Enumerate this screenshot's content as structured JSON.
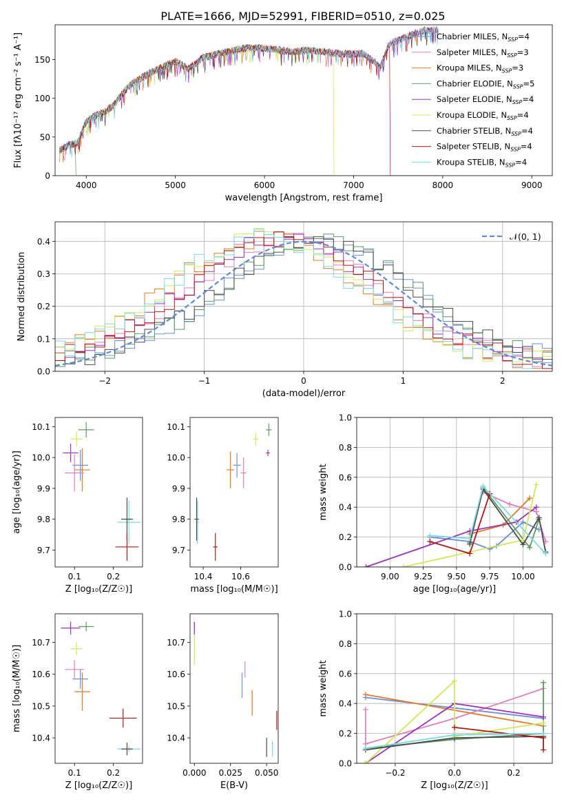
{
  "figure_title": "PLATE=1666, MJD=52991, FIBERID=0510, z=0.025",
  "model_colors": [
    "#6b8fd6",
    "#e07fbf",
    "#e07a2a",
    "#5a9a60",
    "#9a32b8",
    "#cfe85a",
    "#4a4a4a",
    "#b01515",
    "#7fd8e0"
  ],
  "legend_models": [
    {
      "name": "Chabrier MILES",
      "n": "4"
    },
    {
      "name": "Salpeter MILES",
      "n": "3"
    },
    {
      "name": "Kroupa MILES",
      "n": "3"
    },
    {
      "name": "Chabrier ELODIE",
      "n": "5"
    },
    {
      "name": "Salpeter ELODIE",
      "n": "4"
    },
    {
      "name": "Kroupa ELODIE",
      "n": "4"
    },
    {
      "name": "Chabrier STELIB",
      "n": "4"
    },
    {
      "name": "Salpeter STELIB",
      "n": "4"
    },
    {
      "name": "Kroupa STELIB",
      "n": "4"
    }
  ],
  "chart_data": [
    {
      "panel": "spectrum",
      "type": "line",
      "xlabel": "wavelength [Angstrom, rest frame]",
      "ylabel_main": "Flux [f",
      "ylabel_units": "10⁻¹⁷ erg cm⁻² s⁻¹ A⁻¹]",
      "xlim": [
        3650,
        9230
      ],
      "ylim": [
        0,
        195
      ],
      "xticks": [
        4000,
        5000,
        6000,
        7000,
        8000,
        9000
      ],
      "yticks": [
        0,
        50,
        100,
        150
      ],
      "continuum": {
        "x": [
          3700,
          3800,
          3900,
          4000,
          4100,
          4200,
          4300,
          4400,
          4500,
          4700,
          5000,
          5150,
          5300,
          5500,
          5800,
          6000,
          6300,
          6500,
          6800,
          7000,
          7100,
          7200,
          7300,
          7400,
          7600,
          7800,
          7950
        ],
        "y": [
          32,
          40,
          42,
          70,
          78,
          82,
          90,
          105,
          118,
          132,
          148,
          138,
          152,
          158,
          165,
          165,
          160,
          162,
          158,
          157,
          158,
          150,
          140,
          170,
          180,
          188,
          188
        ]
      },
      "cutoffs": [
        {
          "model": "Kroupa ELODIE",
          "x": 6780
        },
        {
          "model": "Salpeter STELIB",
          "x": 7410
        },
        {
          "model": "Chabrier ELODIE",
          "x": 3900
        }
      ]
    },
    {
      "panel": "residuals",
      "type": "histogram",
      "xlabel": "(data-model)/error",
      "ylabel": "Normed distribution",
      "xlim": [
        -2.5,
        2.5
      ],
      "ylim": [
        0,
        0.46
      ],
      "xticks": [
        -2,
        -1,
        0,
        1,
        2
      ],
      "yticks": [
        0.0,
        0.1,
        0.2,
        0.3,
        0.4
      ],
      "grid": true,
      "reference_curve": {
        "label": "𝒩(0, 1)",
        "mean": 0,
        "sigma": 1
      },
      "legend_position": "top-right"
    },
    {
      "panel": "age-vs-Z",
      "type": "scatter",
      "xlabel": "Z [log₁₀(Z/Z☉)]",
      "ylabel": "age  [log₁₀(age/yr)]",
      "xlim": [
        0.05,
        0.275
      ],
      "ylim": [
        9.645,
        10.13
      ],
      "xticks": [
        0.1,
        0.2
      ],
      "yticks": [
        9.7,
        9.8,
        9.9,
        10.0,
        10.1
      ],
      "points": [
        {
          "x": 0.13,
          "y": 10.09,
          "xerr": 0.02,
          "yerr": 0.025,
          "c": 3
        },
        {
          "x": 0.105,
          "y": 10.06,
          "xerr": 0.015,
          "yerr": 0.025,
          "c": 5
        },
        {
          "x": 0.09,
          "y": 10.015,
          "xerr": 0.02,
          "yerr": 0.03,
          "c": 4
        },
        {
          "x": 0.115,
          "y": 9.975,
          "xerr": 0.02,
          "yerr": 0.05,
          "c": 0
        },
        {
          "x": 0.12,
          "y": 9.96,
          "xerr": 0.02,
          "yerr": 0.07,
          "c": 2
        },
        {
          "x": 0.1,
          "y": 9.95,
          "xerr": 0.025,
          "yerr": 0.06,
          "c": 1
        },
        {
          "x": 0.24,
          "y": 9.79,
          "xerr": 0.03,
          "yerr": 0.07,
          "c": 8
        },
        {
          "x": 0.235,
          "y": 9.8,
          "xerr": 0.015,
          "yerr": 0.07,
          "c": 6
        },
        {
          "x": 0.235,
          "y": 9.71,
          "xerr": 0.03,
          "yerr": 0.045,
          "c": 7
        }
      ]
    },
    {
      "panel": "age-vs-mass",
      "type": "scatter",
      "xlabel": "mass [log₁₀(M/M☉)]",
      "ylim": [
        9.645,
        10.13
      ],
      "xlim": [
        10.33,
        10.8
      ],
      "xticks": [
        10.4,
        10.6
      ],
      "yticks": [
        9.7,
        9.8,
        9.9,
        10.0,
        10.1
      ],
      "points": [
        {
          "x": 10.75,
          "y": 10.09,
          "xerr": 0.015,
          "yerr": 0.02,
          "c": 3
        },
        {
          "x": 10.68,
          "y": 10.06,
          "xerr": 0.015,
          "yerr": 0.02,
          "c": 5
        },
        {
          "x": 10.745,
          "y": 10.015,
          "xerr": 0.01,
          "yerr": 0.01,
          "c": 4
        },
        {
          "x": 10.58,
          "y": 9.975,
          "xerr": 0.02,
          "yerr": 0.04,
          "c": 0
        },
        {
          "x": 10.545,
          "y": 9.96,
          "xerr": 0.02,
          "yerr": 0.06,
          "c": 2
        },
        {
          "x": 10.615,
          "y": 9.95,
          "xerr": 0.015,
          "yerr": 0.05,
          "c": 1
        },
        {
          "x": 10.37,
          "y": 9.79,
          "xerr": 0.008,
          "yerr": 0.07,
          "c": 8
        },
        {
          "x": 10.365,
          "y": 9.8,
          "xerr": 0.012,
          "yerr": 0.07,
          "c": 6
        },
        {
          "x": 10.465,
          "y": 9.71,
          "xerr": 0.012,
          "yerr": 0.045,
          "c": 7
        }
      ]
    },
    {
      "panel": "weight-vs-age",
      "type": "line",
      "xlabel": "age  [log₁₀(age/yr)]",
      "ylabel": "mass weight",
      "xlim": [
        8.75,
        10.22
      ],
      "ylim": [
        0,
        1
      ],
      "xticks": [
        9.0,
        9.25,
        9.5,
        9.75,
        10.0
      ],
      "yticks": [
        0.0,
        0.2,
        0.4,
        0.6,
        0.8,
        1.0
      ],
      "grid": true,
      "series": [
        {
          "c": 0,
          "x": [
            9.3,
            9.6,
            9.75,
            9.8,
            10.0,
            10.12
          ],
          "y": [
            0.2,
            0.17,
            0.12,
            0.14,
            0.3,
            0.25
          ]
        },
        {
          "c": 1,
          "x": [
            9.7,
            9.9,
            10.1,
            10.17
          ],
          "y": [
            0.5,
            0.42,
            0.37,
            0.17
          ]
        },
        {
          "c": 2,
          "x": [
            9.6,
            9.85,
            10.05
          ],
          "y": [
            0.22,
            0.28,
            0.46
          ]
        },
        {
          "c": 3,
          "x": [
            9.6,
            9.7,
            10.05,
            10.12
          ],
          "y": [
            0.15,
            0.53,
            0.13,
            0.32
          ]
        },
        {
          "c": 4,
          "x": [
            8.82,
            9.6,
            9.95,
            10.1
          ],
          "y": [
            0.0,
            0.24,
            0.3,
            0.4
          ]
        },
        {
          "c": 5,
          "x": [
            9.1,
            10.0,
            10.1
          ],
          "y": [
            0.0,
            0.18,
            0.55
          ]
        },
        {
          "c": 6,
          "x": [
            9.6,
            9.7,
            10.0,
            10.12,
            10.17
          ],
          "y": [
            0.16,
            0.52,
            0.15,
            0.33,
            0.1
          ]
        },
        {
          "c": 7,
          "x": [
            9.3,
            9.6,
            9.75
          ],
          "y": [
            0.17,
            0.09,
            0.49
          ]
        },
        {
          "c": 8,
          "x": [
            9.3,
            9.6,
            9.7,
            10.17
          ],
          "y": [
            0.21,
            0.19,
            0.54,
            0.09
          ]
        }
      ]
    },
    {
      "panel": "mass-vs-Z",
      "type": "scatter",
      "xlabel": "Z [log₁₀(Z/Z☉)]",
      "ylabel": "mass [log₁₀(M/M☉)]",
      "xlim": [
        0.05,
        0.275
      ],
      "ylim": [
        10.32,
        10.79
      ],
      "xticks": [
        0.1,
        0.2
      ],
      "yticks": [
        10.4,
        10.5,
        10.6,
        10.7
      ],
      "points": [
        {
          "x": 0.13,
          "y": 10.75,
          "xerr": 0.02,
          "yerr": 0.015,
          "c": 3
        },
        {
          "x": 0.105,
          "y": 10.68,
          "xerr": 0.015,
          "yerr": 0.02,
          "c": 5
        },
        {
          "x": 0.09,
          "y": 10.745,
          "xerr": 0.025,
          "yerr": 0.02,
          "c": 4
        },
        {
          "x": 0.115,
          "y": 10.585,
          "xerr": 0.02,
          "yerr": 0.03,
          "c": 0
        },
        {
          "x": 0.12,
          "y": 10.545,
          "xerr": 0.02,
          "yerr": 0.06,
          "c": 2
        },
        {
          "x": 0.1,
          "y": 10.615,
          "xerr": 0.025,
          "yerr": 0.03,
          "c": 1
        },
        {
          "x": 0.24,
          "y": 10.365,
          "xerr": 0.03,
          "yerr": 0.01,
          "c": 8
        },
        {
          "x": 0.235,
          "y": 10.365,
          "xerr": 0.015,
          "yerr": 0.02,
          "c": 6
        },
        {
          "x": 0.225,
          "y": 10.462,
          "xerr": 0.035,
          "yerr": 0.03,
          "c": 7
        }
      ]
    },
    {
      "panel": "mass-vs-EBV",
      "type": "scatter",
      "xlabel": "E(B-V)",
      "xlim": [
        -0.003,
        0.058
      ],
      "ylim": [
        10.32,
        10.79
      ],
      "xticks": [
        0.0,
        0.025,
        0.05
      ],
      "xtick_labels": [
        "0.000",
        "0.025",
        "0.050"
      ],
      "yticks": [
        10.4,
        10.5,
        10.6,
        10.7
      ],
      "points": [
        {
          "x": 0.0,
          "y": 10.75,
          "xerr": 0.0,
          "yerr": 0.015,
          "c": 3
        },
        {
          "x": 0.0,
          "y": 10.68,
          "xerr": 0.0,
          "yerr": 0.05,
          "c": 5
        },
        {
          "x": 0.0,
          "y": 10.745,
          "xerr": 0.0,
          "yerr": 0.02,
          "c": 4
        },
        {
          "x": 0.033,
          "y": 10.565,
          "xerr": 0.0,
          "yerr": 0.04,
          "c": 0
        },
        {
          "x": 0.04,
          "y": 10.51,
          "xerr": 0.0,
          "yerr": 0.04,
          "c": 2
        },
        {
          "x": 0.035,
          "y": 10.615,
          "xerr": 0.0,
          "yerr": 0.025,
          "c": 1
        },
        {
          "x": 0.054,
          "y": 10.365,
          "xerr": 0.0,
          "yerr": 0.025,
          "c": 8
        },
        {
          "x": 0.05,
          "y": 10.37,
          "xerr": 0.0,
          "yerr": 0.03,
          "c": 6
        },
        {
          "x": 0.057,
          "y": 10.455,
          "xerr": 0.0,
          "yerr": 0.03,
          "c": 7
        }
      ]
    },
    {
      "panel": "weight-vs-Z",
      "type": "line",
      "xlabel": "Z [log₁₀(Z/Z☉)]",
      "ylabel": "mass weight",
      "xlim": [
        -0.33,
        0.33
      ],
      "ylim": [
        0,
        1
      ],
      "xticks": [
        -0.2,
        0.0,
        0.2
      ],
      "grid": true,
      "series": [
        {
          "c": 0,
          "x": [
            -0.3,
            0.0,
            0.3
          ],
          "y": [
            0.44,
            0.37,
            0.3
          ]
        },
        {
          "c": 1,
          "x": [
            -0.3,
            -0.3,
            0.0,
            0.3
          ],
          "y": [
            0.36,
            0.13,
            0.3,
            0.5
          ]
        },
        {
          "c": 2,
          "x": [
            -0.3,
            0.3
          ],
          "y": [
            0.46,
            0.25
          ]
        },
        {
          "c": 3,
          "x": [
            -0.3,
            0.0,
            0.3,
            0.3
          ],
          "y": [
            0.1,
            0.16,
            0.2,
            0.54
          ]
        },
        {
          "c": 4,
          "x": [
            -0.3,
            0.0,
            0.3
          ],
          "y": [
            0.0,
            0.4,
            0.31
          ]
        },
        {
          "c": 5,
          "x": [
            -0.3,
            0.0,
            0.0,
            0.3
          ],
          "y": [
            0.0,
            0.55,
            0.18,
            0.27
          ]
        },
        {
          "c": 6,
          "x": [
            -0.3,
            0.0,
            0.3
          ],
          "y": [
            0.09,
            0.17,
            0.18
          ]
        },
        {
          "c": 7,
          "x": [
            0.0,
            0.3,
            0.3
          ],
          "y": [
            0.24,
            0.17,
            0.09
          ]
        },
        {
          "c": 8,
          "x": [
            -0.3,
            0.0,
            0.3
          ],
          "y": [
            0.1,
            0.19,
            0.2
          ]
        }
      ]
    }
  ]
}
